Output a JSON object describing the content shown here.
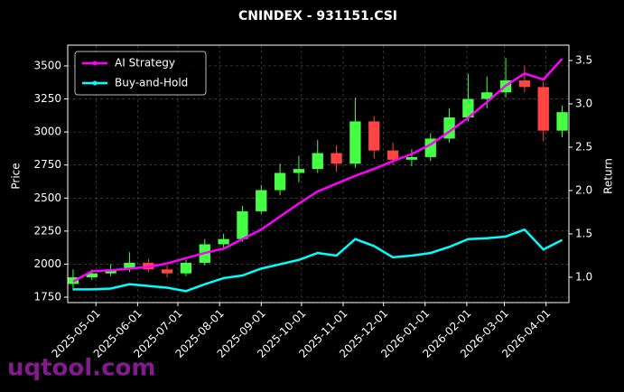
{
  "chart_data": {
    "type": "candlestick",
    "title": "CNINDEX - 931151.CSI",
    "y_label": "Price",
    "y2_label": "Return",
    "watermark": "uqtool.com",
    "x": [
      "2025-04-14",
      "2025-04-28",
      "2025-05-12",
      "2025-05-26",
      "2025-06-09",
      "2025-06-23",
      "2025-07-07",
      "2025-07-21",
      "2025-08-04",
      "2025-08-18",
      "2025-09-01",
      "2025-09-15",
      "2025-09-29",
      "2025-10-13",
      "2025-10-27",
      "2025-11-10",
      "2025-11-24",
      "2025-12-08",
      "2025-12-22",
      "2026-01-05",
      "2026-01-19",
      "2026-02-02",
      "2026-02-16",
      "2026-03-02",
      "2026-03-16",
      "2026-03-30",
      "2026-04-13"
    ],
    "open": [
      1850,
      1900,
      1930,
      1960,
      2010,
      1960,
      1930,
      2010,
      2150,
      2190,
      2400,
      2560,
      2690,
      2720,
      2840,
      2760,
      3080,
      2860,
      2790,
      2810,
      2950,
      3110,
      3250,
      3300,
      3390,
      3340,
      3010
    ],
    "high": [
      1960,
      1960,
      2000,
      2090,
      2040,
      1990,
      2030,
      2190,
      2230,
      2440,
      2600,
      2760,
      2820,
      2940,
      2900,
      3260,
      3120,
      2920,
      2870,
      2990,
      3180,
      3440,
      3420,
      3560,
      3500,
      3380,
      3200
    ],
    "low": [
      1800,
      1880,
      1910,
      1940,
      1940,
      1900,
      1910,
      1990,
      2120,
      2170,
      2380,
      2520,
      2620,
      2690,
      2700,
      2730,
      2800,
      2750,
      2740,
      2780,
      2920,
      3080,
      3180,
      3260,
      3300,
      2930,
      2960
    ],
    "close": [
      1900,
      1930,
      1960,
      2010,
      1960,
      1930,
      2010,
      2150,
      2190,
      2400,
      2560,
      2690,
      2720,
      2840,
      2760,
      3080,
      2860,
      2790,
      2810,
      2950,
      3110,
      3250,
      3300,
      3390,
      3340,
      3010,
      3150
    ],
    "up_color": "#44ff44",
    "down_color": "#ff4444",
    "series": [
      {
        "name": "AI Strategy",
        "color": "#ff00ff",
        "axis": "y2",
        "values": [
          0.95,
          1.07,
          1.08,
          1.1,
          1.12,
          1.16,
          1.22,
          1.28,
          1.33,
          1.44,
          1.55,
          1.7,
          1.85,
          1.99,
          2.08,
          2.17,
          2.25,
          2.34,
          2.42,
          2.53,
          2.68,
          2.84,
          3.02,
          3.21,
          3.35,
          3.28,
          3.52
        ]
      },
      {
        "name": "Buy-and-Hold",
        "color": "#00ffff",
        "axis": "y2",
        "values": [
          0.86,
          0.86,
          0.87,
          0.92,
          0.9,
          0.88,
          0.84,
          0.92,
          0.99,
          1.02,
          1.1,
          1.15,
          1.2,
          1.28,
          1.25,
          1.44,
          1.36,
          1.23,
          1.25,
          1.28,
          1.35,
          1.44,
          1.45,
          1.47,
          1.55,
          1.32,
          1.43
        ]
      }
    ],
    "xlim": [
      "2025-04-10",
      "2026-04-18"
    ],
    "xticks": [
      "2025-05-01",
      "2025-06-01",
      "2025-07-01",
      "2025-08-01",
      "2025-09-01",
      "2025-10-01",
      "2025-11-01",
      "2025-12-01",
      "2026-01-01",
      "2026-02-01",
      "2026-03-01",
      "2026-04-01"
    ],
    "ylim": [
      1709,
      3657
    ],
    "yticks": [
      1750,
      2000,
      2250,
      2500,
      2750,
      3000,
      3250,
      3500
    ],
    "y2lim": [
      0.708,
      3.677
    ],
    "y2ticks": [
      {
        "value": 1,
        "label": "1.0"
      },
      1.5,
      {
        "value": 2,
        "label": "2.0"
      },
      2.5,
      {
        "value": 3,
        "label": "3.0"
      },
      3.5
    ],
    "grid": true,
    "legend": "upper-left"
  }
}
